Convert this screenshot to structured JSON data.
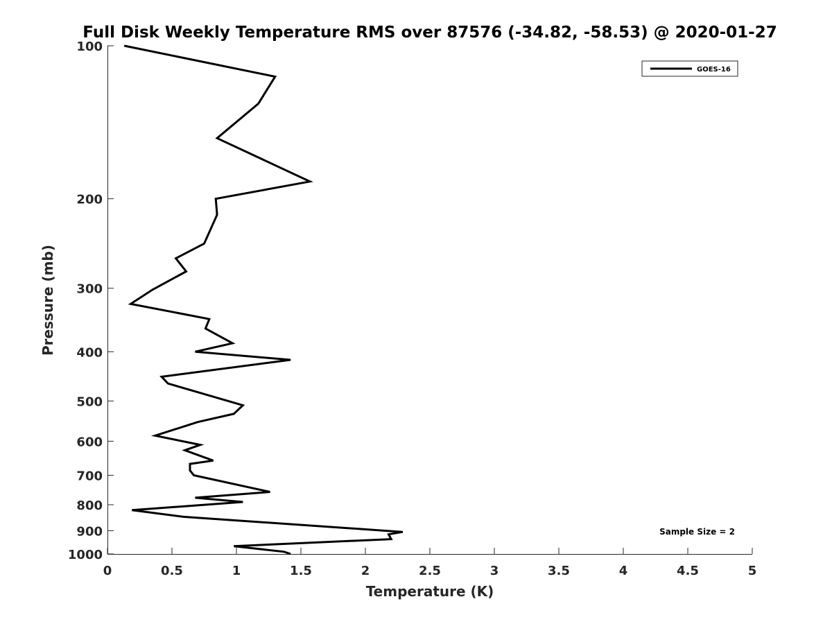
{
  "chart_data": {
    "type": "line",
    "title": "Full Disk Weekly Temperature RMS over 87576 (-34.82, -58.53) @ 2020-01-27",
    "xlabel": "Temperature (K)",
    "ylabel": "Pressure (mb)",
    "xlim": [
      0,
      5
    ],
    "ylim": [
      100,
      1000
    ],
    "y_scale": "log",
    "y_reversed": true,
    "x_ticks": [
      0,
      0.5,
      1,
      1.5,
      2,
      2.5,
      3,
      3.5,
      4,
      4.5,
      5
    ],
    "x_tick_labels": [
      "0",
      "0.5",
      "1",
      "1.5",
      "2",
      "2.5",
      "3",
      "3.5",
      "4",
      "4.5",
      "5"
    ],
    "y_ticks": [
      100,
      200,
      300,
      400,
      500,
      600,
      700,
      800,
      900,
      1000
    ],
    "y_tick_labels": [
      "100",
      "200",
      "300",
      "400",
      "500",
      "600",
      "700",
      "800",
      "900",
      "1000"
    ],
    "grid": false,
    "legend_position": "top-right",
    "series": [
      {
        "name": "GOES-16",
        "color": "#000000",
        "x": [
          0.13,
          1.3,
          1.17,
          0.85,
          1.57,
          0.84,
          0.85,
          0.75,
          0.53,
          0.61,
          0.35,
          0.18,
          0.79,
          0.76,
          0.97,
          0.68,
          1.42,
          0.42,
          0.47,
          1.05,
          0.98,
          0.7,
          0.37,
          0.72,
          0.6,
          0.82,
          0.64,
          0.64,
          0.67,
          1.26,
          0.68,
          1.05,
          0.19,
          0.59,
          2.29,
          2.18,
          2.2,
          0.98,
          1.37,
          1.42
        ],
        "y": [
          100,
          115,
          130,
          152,
          185,
          200,
          215,
          245,
          262,
          278,
          302,
          322,
          345,
          360,
          385,
          400,
          415,
          448,
          462,
          510,
          530,
          550,
          585,
          610,
          625,
          655,
          665,
          685,
          700,
          755,
          775,
          790,
          820,
          845,
          905,
          915,
          935,
          965,
          990,
          1000
        ]
      }
    ],
    "annotations": [
      "Sample Size = 2"
    ]
  }
}
